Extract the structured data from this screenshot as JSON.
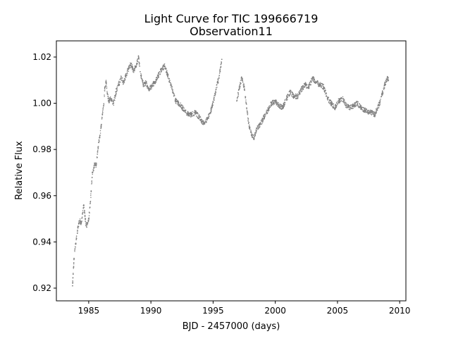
{
  "chart_data": {
    "type": "scatter",
    "title": "Light Curve for TIC 199666719",
    "subtitle": "Observation11",
    "xlabel": "BJD - 2457000 (days)",
    "ylabel": "Relative Flux",
    "xlim": [
      1982.4,
      2010.5
    ],
    "ylim": [
      0.9145,
      1.027
    ],
    "xticks": [
      1985,
      1990,
      1995,
      2000,
      2005,
      2010
    ],
    "xtick_labels": [
      "1985",
      "1990",
      "1995",
      "2000",
      "2005",
      "2010"
    ],
    "yticks": [
      0.92,
      0.94,
      0.96,
      0.98,
      1.0,
      1.02
    ],
    "ytick_labels": [
      "0.92",
      "0.94",
      "0.96",
      "0.98",
      "1.00",
      "1.02"
    ],
    "grid": false,
    "legend": false,
    "marker_color": "#808080",
    "series": [
      {
        "x": [
          1983.7,
          1983.75,
          1983.8,
          1983.9,
          1984.0,
          1984.1,
          1984.2,
          1984.3,
          1984.4,
          1984.5,
          1984.6,
          1984.7,
          1984.8,
          1984.9,
          1985.0,
          1985.1,
          1985.2,
          1985.3,
          1985.4,
          1985.5,
          1985.6,
          1985.7,
          1985.8,
          1985.9,
          1986.0,
          1986.1,
          1986.2,
          1986.3,
          1986.4,
          1986.5,
          1986.6,
          1986.8,
          1987.0,
          1987.2,
          1987.4,
          1987.6,
          1987.8,
          1988.0,
          1988.2,
          1988.4,
          1988.6,
          1988.8,
          1989.0,
          1989.2,
          1989.4,
          1989.6,
          1989.8,
          1990.0,
          1990.3,
          1990.6,
          1990.9,
          1991.1,
          1991.3,
          1991.6,
          1992.0,
          1992.4,
          1992.8,
          1993.2,
          1993.6,
          1994.0,
          1994.3,
          1994.6,
          1994.9,
          1995.2,
          1995.5,
          1995.7
        ],
        "y": [
          0.921,
          0.926,
          0.931,
          0.937,
          0.941,
          0.945,
          0.948,
          0.949,
          0.948,
          0.952,
          0.956,
          0.951,
          0.947,
          0.948,
          0.95,
          0.955,
          0.962,
          0.97,
          0.972,
          0.974,
          0.973,
          0.978,
          0.983,
          0.986,
          0.99,
          0.995,
          0.999,
          1.007,
          1.009,
          1.004,
          1.001,
          1.002,
          1.0,
          1.005,
          1.008,
          1.011,
          1.009,
          1.012,
          1.015,
          1.017,
          1.014,
          1.016,
          1.02,
          1.012,
          1.008,
          1.009,
          1.006,
          1.007,
          1.009,
          1.012,
          1.015,
          1.016,
          1.013,
          1.008,
          1.001,
          0.999,
          0.996,
          0.995,
          0.996,
          0.993,
          0.991,
          0.994,
          0.998,
          1.005,
          1.012,
          1.019
        ]
      },
      {
        "x": [
          1996.9,
          1997.1,
          1997.3,
          1997.5,
          1997.7,
          1997.9,
          1998.1,
          1998.3,
          1998.5,
          1998.8,
          1999.1,
          1999.4,
          1999.7,
          2000.0,
          2000.3,
          2000.6,
          2000.9,
          2001.2,
          2001.5,
          2001.8,
          2002.1,
          2002.4,
          2002.7,
          2003.0,
          2003.3,
          2003.6,
          2003.9,
          2004.2,
          2004.5,
          2004.8,
          2005.1,
          2005.4,
          2005.7,
          2006.0,
          2006.3,
          2006.6,
          2006.9,
          2007.2,
          2007.5,
          2007.8,
          2008.0,
          2008.2,
          2008.4,
          2008.6,
          2008.8,
          2009.0,
          2009.1
        ],
        "y": [
          1.001,
          1.006,
          1.011,
          1.007,
          0.998,
          0.99,
          0.986,
          0.985,
          0.989,
          0.991,
          0.994,
          0.997,
          1.0,
          1.001,
          0.999,
          0.998,
          1.002,
          1.005,
          1.003,
          1.003,
          1.006,
          1.008,
          1.007,
          1.011,
          1.009,
          1.008,
          1.007,
          1.002,
          1.0,
          0.998,
          1.001,
          1.002,
          0.999,
          0.998,
          0.999,
          1.0,
          0.998,
          0.997,
          0.996,
          0.996,
          0.995,
          0.998,
          1.0,
          1.004,
          1.008,
          1.011,
          1.01
        ]
      }
    ]
  }
}
